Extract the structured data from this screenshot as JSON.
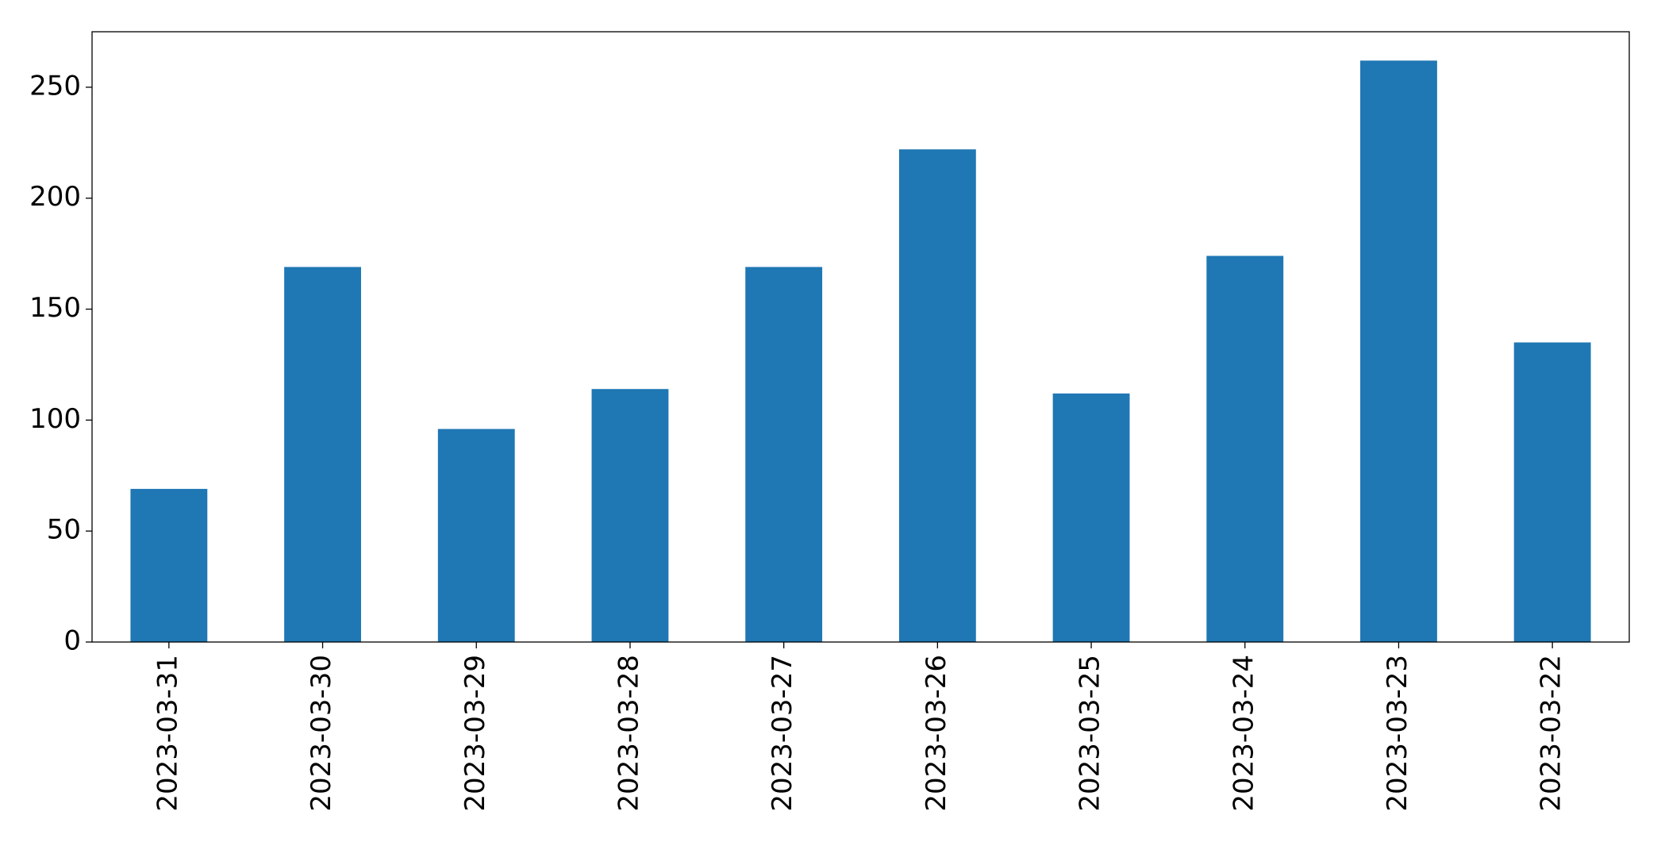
{
  "chart_data": {
    "type": "bar",
    "categories": [
      "2023-03-31",
      "2023-03-30",
      "2023-03-29",
      "2023-03-28",
      "2023-03-27",
      "2023-03-26",
      "2023-03-25",
      "2023-03-24",
      "2023-03-23",
      "2023-03-22"
    ],
    "values": [
      69,
      169,
      96,
      114,
      169,
      222,
      112,
      174,
      262,
      135
    ],
    "color": "#1f77b4",
    "ylim": [
      0,
      275
    ],
    "yticks": [
      0,
      50,
      100,
      150,
      200,
      250
    ],
    "grid": false
  }
}
